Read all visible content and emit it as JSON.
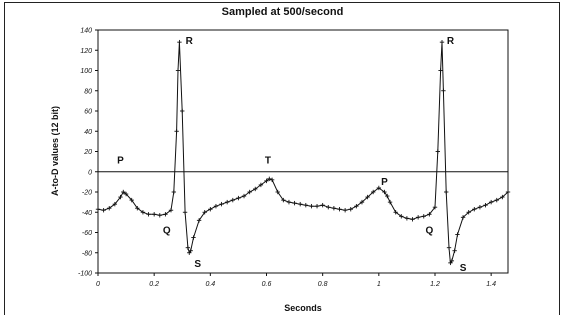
{
  "chart_data": {
    "type": "line",
    "title": "Sampled at 500/second",
    "xlabel": "Seconds",
    "ylabel": "A-to-D values (12 bit)",
    "xlim": [
      0,
      1.46
    ],
    "ylim": [
      -100,
      140
    ],
    "x_ticks": [
      0,
      0.2,
      0.4,
      0.6,
      0.8,
      1,
      1.2,
      1.4
    ],
    "x_tick_labels": [
      "0",
      "0.2",
      "0.4",
      "0.6",
      "0.8",
      "1",
      "1.2",
      "1.4"
    ],
    "y_ticks": [
      140,
      120,
      100,
      80,
      60,
      40,
      20,
      0,
      -20,
      -40,
      -60,
      -80,
      -100
    ],
    "y_tick_labels": [
      "140",
      "120",
      "100",
      "80",
      "60",
      "40",
      "20",
      "0",
      "-20",
      "-40",
      "-60",
      "-80",
      "-100"
    ],
    "grid": false,
    "zero_line": true,
    "marker": "+",
    "series": [
      {
        "x": [
          0,
          0.02,
          0.04,
          0.06,
          0.08,
          0.09,
          0.1,
          0.12,
          0.14,
          0.16,
          0.18,
          0.2,
          0.22,
          0.24,
          0.26,
          0.27,
          0.28,
          0.285,
          0.29,
          0.3,
          0.31,
          0.32,
          0.325,
          0.33,
          0.34,
          0.36,
          0.38,
          0.4,
          0.42,
          0.44,
          0.46,
          0.48,
          0.5,
          0.52,
          0.54,
          0.56,
          0.58,
          0.6,
          0.61,
          0.62,
          0.64,
          0.66,
          0.68,
          0.7,
          0.72,
          0.74,
          0.76,
          0.78,
          0.8,
          0.82,
          0.84,
          0.86,
          0.88,
          0.9,
          0.92,
          0.94,
          0.96,
          0.98,
          1.0,
          1.02,
          1.03,
          1.04,
          1.06,
          1.08,
          1.1,
          1.12,
          1.14,
          1.16,
          1.18,
          1.2,
          1.21,
          1.22,
          1.225,
          1.23,
          1.24,
          1.25,
          1.255,
          1.26,
          1.27,
          1.28,
          1.3,
          1.32,
          1.34,
          1.36,
          1.38,
          1.4,
          1.42,
          1.44,
          1.46
        ],
        "y": [
          -37,
          -38,
          -36,
          -32,
          -25,
          -20,
          -22,
          -28,
          -36,
          -40,
          -42,
          -42,
          -43,
          -42,
          -38,
          -20,
          40,
          100,
          128,
          60,
          -40,
          -75,
          -80,
          -78,
          -65,
          -48,
          -40,
          -37,
          -34,
          -32,
          -30,
          -28,
          -26,
          -24,
          -20,
          -17,
          -13,
          -9,
          -7,
          -8,
          -20,
          -28,
          -30,
          -31,
          -32,
          -33,
          -34,
          -34,
          -33,
          -35,
          -36,
          -37,
          -38,
          -37,
          -34,
          -30,
          -25,
          -20,
          -16,
          -20,
          -24,
          -30,
          -40,
          -44,
          -46,
          -47,
          -45,
          -44,
          -42,
          -35,
          20,
          100,
          128,
          80,
          -20,
          -75,
          -90,
          -88,
          -78,
          -62,
          -45,
          -40,
          -37,
          -35,
          -33,
          -30,
          -28,
          -25,
          -20
        ]
      }
    ],
    "annotations": [
      {
        "text": "P",
        "x": 0.08,
        "y": 8
      },
      {
        "text": "R",
        "x": 0.325,
        "y": 126
      },
      {
        "text": "Q",
        "x": 0.245,
        "y": -61
      },
      {
        "text": "S",
        "x": 0.355,
        "y": -94
      },
      {
        "text": "T",
        "x": 0.605,
        "y": 8
      },
      {
        "text": "P",
        "x": 1.02,
        "y": -13
      },
      {
        "text": "Q",
        "x": 1.18,
        "y": -61
      },
      {
        "text": "R",
        "x": 1.255,
        "y": 126
      },
      {
        "text": "S",
        "x": 1.3,
        "y": -98
      }
    ]
  }
}
